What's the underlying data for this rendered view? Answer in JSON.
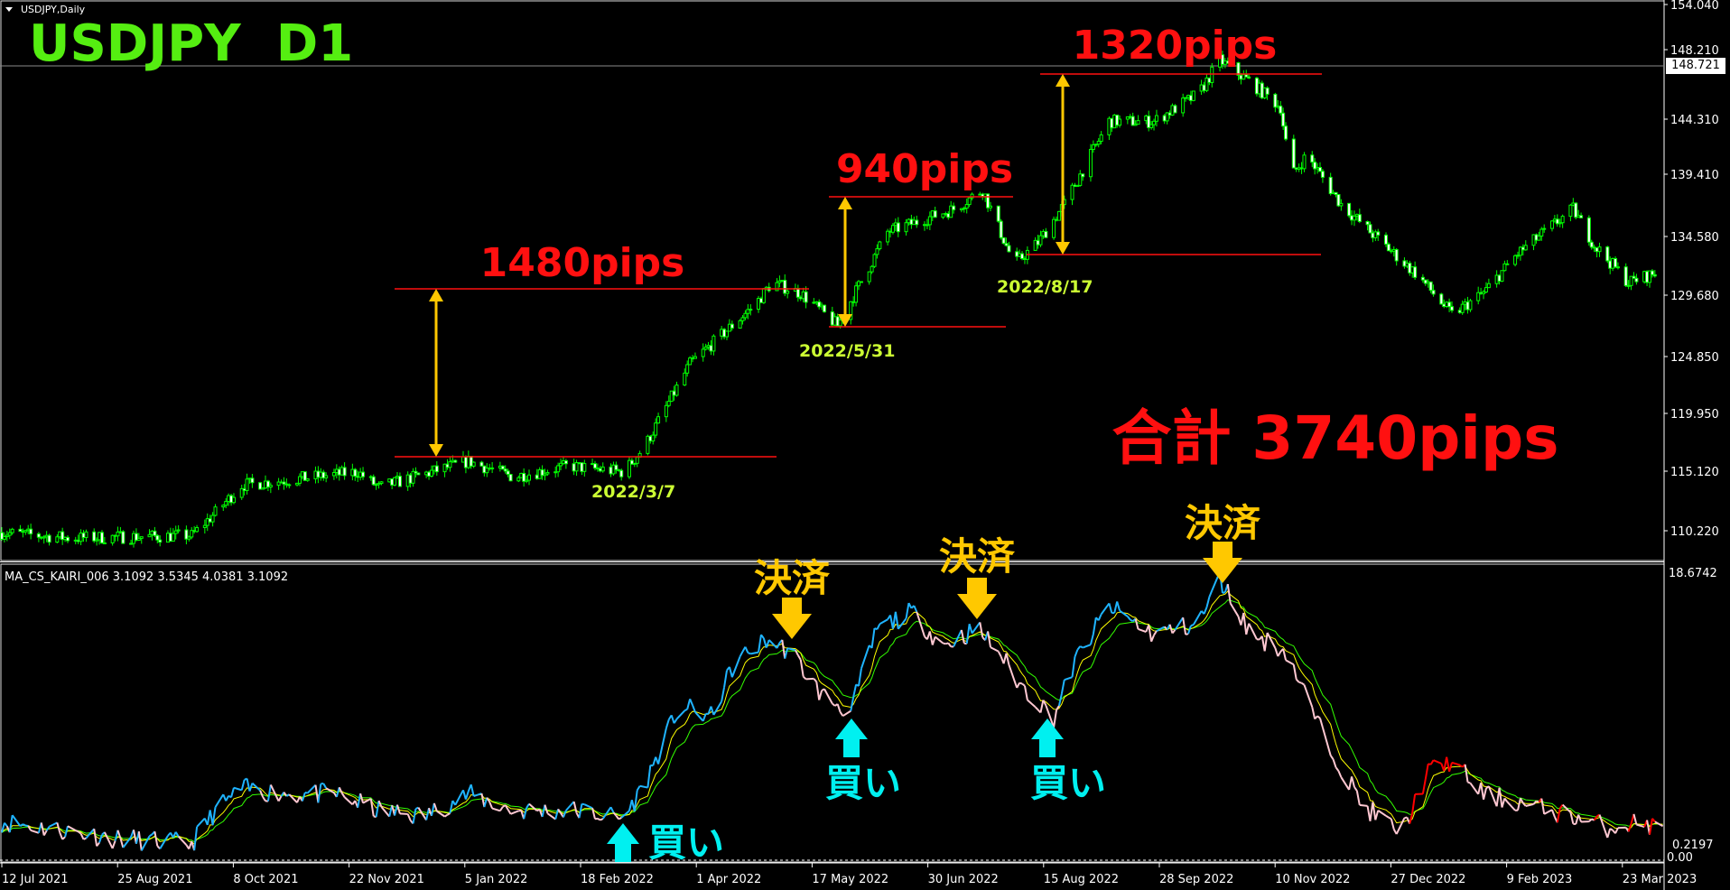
{
  "window": {
    "symbol_label": "USDJPY,Daily",
    "title_overlay": "USDJPY  D1"
  },
  "price_axis": {
    "ticks": [
      "154.040",
      "148.210",
      "144.310",
      "139.410",
      "134.580",
      "129.680",
      "124.850",
      "119.950",
      "115.120",
      "110.220"
    ],
    "current_price": "148.721"
  },
  "indicator": {
    "label": "MA_CS_KAIRI_006 3.1092 3.5345 4.0381 3.1092",
    "axis_max": "18.6742",
    "axis_min": "0.2197",
    "axis_min_overlap": "0.00"
  },
  "time_axis": [
    "12 Jul 2021",
    "25 Aug 2021",
    "8 Oct 2021",
    "22 Nov 2021",
    "5 Jan 2022",
    "18 Feb 2022",
    "1 Apr 2022",
    "17 May 2022",
    "30 Jun 2022",
    "15 Aug 2022",
    "28 Sep 2022",
    "10 Nov 2022",
    "27 Dec 2022",
    "9 Feb 2023",
    "23 Mar 2023"
  ],
  "annotations": {
    "moves": [
      {
        "pips": "1480pips",
        "date": "2022/3/7"
      },
      {
        "pips": "940pips",
        "date": "2022/5/31"
      },
      {
        "pips": "1320pips",
        "date": "2022/8/17"
      }
    ],
    "total": "合計 3740pips",
    "exit_label": "決済",
    "buy_label": "買い"
  },
  "colors": {
    "bull": "#00ff00",
    "title": "#55ee11",
    "annotation_red": "#ff1010",
    "arrow_yellow": "#ffc800",
    "date_label": "#ccff33",
    "buy": "#00f0f0",
    "kairi_up": "#1fb4ff",
    "kairi_down": "#ffc8d2",
    "kairi_late": "#ff0000",
    "ma_fast": "#ffff00",
    "ma_slow": "#33ff00"
  },
  "chart_data": {
    "type": "candlestick",
    "price_path": [
      [
        "2021-07-12",
        110.05
      ],
      [
        "2021-08-07",
        109.6
      ],
      [
        "2021-09-22",
        109.8
      ],
      [
        "2021-10-01",
        111.7
      ],
      [
        "2021-10-11",
        114.0
      ],
      [
        "2021-11-24",
        115.1
      ],
      [
        "2021-12-02",
        113.8
      ],
      [
        "2022-01-05",
        116.0
      ],
      [
        "2022-01-22",
        114.7
      ],
      [
        "2022-02-12",
        115.6
      ],
      [
        "2022-03-05",
        115.1
      ],
      [
        "2022-03-13",
        117.3
      ],
      [
        "2022-03-30",
        124.1
      ],
      [
        "2022-04-24",
        129.1
      ],
      [
        "2022-04-30",
        130.9
      ],
      [
        "2022-05-11",
        130.0
      ],
      [
        "2022-05-25",
        127.3
      ],
      [
        "2022-06-13",
        135.1
      ],
      [
        "2022-07-08",
        137.0
      ],
      [
        "2022-07-19",
        138.6
      ],
      [
        "2022-07-31",
        132.4
      ],
      [
        "2022-08-09",
        134.2
      ],
      [
        "2022-08-19",
        137.4
      ],
      [
        "2022-09-05",
        144.3
      ],
      [
        "2022-09-22",
        144.3
      ],
      [
        "2022-10-09",
        146.6
      ],
      [
        "2022-10-17",
        149.4
      ],
      [
        "2022-10-29",
        147.5
      ],
      [
        "2022-11-09",
        145.5
      ],
      [
        "2022-11-13",
        139.7
      ],
      [
        "2022-11-19",
        141.5
      ],
      [
        "2022-12-02",
        137.4
      ],
      [
        "2022-12-15",
        134.7
      ],
      [
        "2022-12-31",
        131.5
      ],
      [
        "2023-01-13",
        128.2
      ],
      [
        "2023-01-25",
        130.0
      ],
      [
        "2023-02-07",
        133.3
      ],
      [
        "2023-02-28",
        137.0
      ],
      [
        "2023-03-08",
        134.0
      ],
      [
        "2023-03-21",
        130.9
      ],
      [
        "2023-04-02",
        131.8
      ],
      [
        "2023-04-06",
        133.3
      ]
    ],
    "kairi_path": [
      [
        "2021-07-13",
        2.43
      ],
      [
        "2021-08-24",
        1.35
      ],
      [
        "2021-09-22",
        0.99
      ],
      [
        "2021-10-01",
        3.15
      ],
      [
        "2021-10-11",
        4.58
      ],
      [
        "2021-10-30",
        4.23
      ],
      [
        "2021-11-16",
        4.23
      ],
      [
        "2021-12-02",
        3.15
      ],
      [
        "2021-12-19",
        2.79
      ],
      [
        "2022-01-05",
        4.23
      ],
      [
        "2022-01-22",
        3.15
      ],
      [
        "2022-02-16",
        3.15
      ],
      [
        "2022-03-05",
        2.65
      ],
      [
        "2022-03-13",
        4.94
      ],
      [
        "2022-03-26",
        9.97
      ],
      [
        "2022-04-07",
        9.25
      ],
      [
        "2022-04-16",
        12.84
      ],
      [
        "2022-04-28",
        14.27
      ],
      [
        "2022-05-07",
        13.56
      ],
      [
        "2022-05-19",
        10.68
      ],
      [
        "2022-05-30",
        9.61
      ],
      [
        "2022-06-09",
        15.0
      ],
      [
        "2022-06-22",
        16.07
      ],
      [
        "2022-07-04",
        13.92
      ],
      [
        "2022-07-17",
        15.0
      ],
      [
        "2022-07-25",
        13.56
      ],
      [
        "2022-08-02",
        11.41
      ],
      [
        "2022-08-15",
        9.25
      ],
      [
        "2022-08-23",
        12.84
      ],
      [
        "2022-09-05",
        16.43
      ],
      [
        "2022-09-22",
        14.63
      ],
      [
        "2022-10-09",
        15.36
      ],
      [
        "2022-10-17",
        18.22
      ],
      [
        "2022-10-29",
        14.63
      ],
      [
        "2022-11-11",
        13.56
      ],
      [
        "2022-11-24",
        8.53
      ],
      [
        "2022-12-10",
        3.51
      ],
      [
        "2022-12-25",
        1.71
      ],
      [
        "2023-01-04",
        5.67
      ],
      [
        "2023-01-13",
        6.38
      ],
      [
        "2023-01-25",
        4.23
      ],
      [
        "2023-02-11",
        3.51
      ],
      [
        "2023-02-28",
        2.79
      ],
      [
        "2023-03-13",
        2.07
      ],
      [
        "2023-03-25",
        2.43
      ],
      [
        "2023-04-06",
        1.71
      ]
    ],
    "price_range": [
      110.22,
      154.04
    ],
    "kairi_range": [
      0.2197,
      18.6742
    ]
  }
}
